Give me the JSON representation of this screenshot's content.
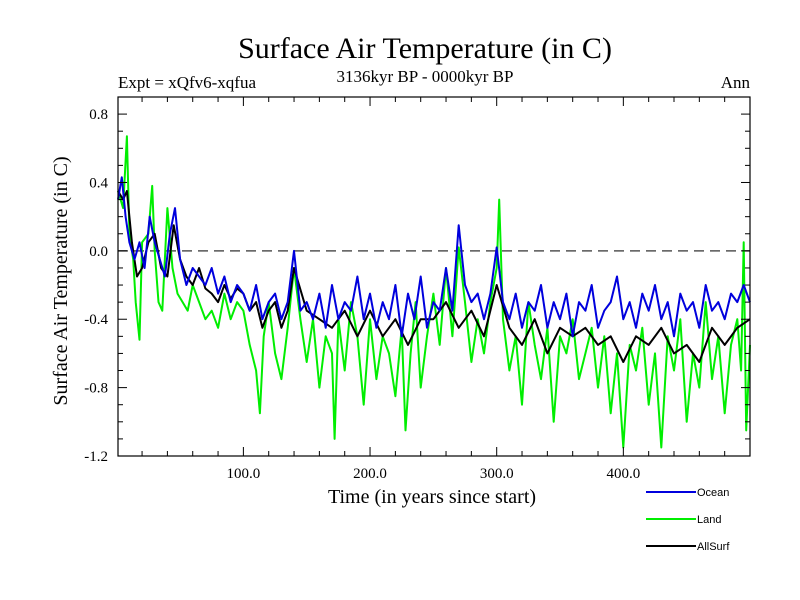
{
  "chart_data": {
    "type": "line",
    "title": "Surface Air Temperature (in C)",
    "subtitle": "3136kyr BP - 0000kyr BP",
    "experiment_label": "Expt = xQfv6-xqfua",
    "season_label": "Ann",
    "xlabel": "Time (in years since start)",
    "ylabel": "Surface Air Temperature (in C)",
    "xlim": [
      1,
      500
    ],
    "ylim": [
      -1.2,
      0.9
    ],
    "x_ticks": [
      100,
      200,
      300,
      400
    ],
    "x_tick_labels": [
      "100.0",
      "200.0",
      "300.0",
      "400.0"
    ],
    "y_ticks": [
      -1.2,
      -0.8,
      -0.4,
      0.0,
      0.4,
      0.8
    ],
    "y_tick_labels": [
      "-1.2",
      "-0.8",
      "-0.4",
      "0.0",
      "0.4",
      "0.8"
    ],
    "reference_line": 0.0,
    "legend_position": "bottom-right",
    "series": [
      {
        "name": "Land",
        "color": "#00ee00",
        "x": [
          1,
          5,
          8,
          10,
          13,
          15,
          18,
          20,
          25,
          28,
          30,
          33,
          36,
          40,
          44,
          48,
          52,
          56,
          60,
          65,
          70,
          75,
          80,
          85,
          90,
          95,
          100,
          105,
          110,
          113,
          116,
          120,
          125,
          130,
          135,
          140,
          145,
          150,
          155,
          160,
          165,
          170,
          172,
          175,
          180,
          185,
          190,
          195,
          200,
          205,
          210,
          215,
          220,
          225,
          228,
          232,
          236,
          240,
          245,
          250,
          255,
          260,
          265,
          270,
          275,
          280,
          285,
          290,
          295,
          300,
          302,
          305,
          310,
          315,
          320,
          325,
          330,
          335,
          340,
          345,
          350,
          355,
          360,
          365,
          370,
          375,
          380,
          385,
          390,
          395,
          400,
          405,
          410,
          415,
          420,
          425,
          430,
          435,
          440,
          445,
          450,
          455,
          460,
          465,
          470,
          475,
          480,
          485,
          490,
          493,
          495,
          497,
          500
        ],
        "values": [
          0.35,
          0.25,
          0.67,
          0.1,
          -0.05,
          -0.3,
          -0.52,
          0.05,
          0.1,
          0.38,
          0.0,
          -0.3,
          -0.35,
          0.25,
          -0.1,
          -0.25,
          -0.3,
          -0.35,
          -0.2,
          -0.3,
          -0.4,
          -0.35,
          -0.45,
          -0.25,
          -0.4,
          -0.3,
          -0.35,
          -0.55,
          -0.7,
          -0.95,
          -0.5,
          -0.3,
          -0.6,
          -0.75,
          -0.45,
          -0.1,
          -0.4,
          -0.65,
          -0.4,
          -0.8,
          -0.5,
          -0.6,
          -1.1,
          -0.4,
          -0.7,
          -0.3,
          -0.5,
          -0.9,
          -0.4,
          -0.75,
          -0.5,
          -0.6,
          -0.85,
          -0.45,
          -1.05,
          -0.6,
          -0.3,
          -0.8,
          -0.5,
          -0.25,
          -0.55,
          -0.1,
          -0.5,
          0.02,
          -0.3,
          -0.65,
          -0.4,
          -0.6,
          -0.3,
          -0.1,
          0.3,
          -0.4,
          -0.7,
          -0.5,
          -0.9,
          -0.3,
          -0.55,
          -0.75,
          -0.45,
          -1.0,
          -0.5,
          -0.6,
          -0.4,
          -0.75,
          -0.6,
          -0.45,
          -0.8,
          -0.5,
          -0.95,
          -0.6,
          -1.15,
          -0.55,
          -0.7,
          -0.45,
          -0.9,
          -0.6,
          -1.15,
          -0.5,
          -0.7,
          -0.4,
          -1.0,
          -0.6,
          -0.8,
          -0.3,
          -0.75,
          -0.5,
          -0.95,
          -0.55,
          -0.4,
          -0.7,
          0.05,
          -1.05,
          -0.55
        ]
      },
      {
        "name": "AllSurf",
        "color": "#000000",
        "x": [
          1,
          5,
          8,
          12,
          16,
          20,
          25,
          30,
          35,
          40,
          45,
          50,
          55,
          60,
          65,
          70,
          75,
          80,
          85,
          90,
          95,
          100,
          105,
          110,
          115,
          120,
          125,
          130,
          135,
          140,
          150,
          160,
          170,
          180,
          190,
          200,
          210,
          220,
          230,
          240,
          250,
          260,
          270,
          280,
          290,
          300,
          310,
          320,
          330,
          340,
          350,
          360,
          370,
          380,
          390,
          400,
          410,
          420,
          430,
          440,
          450,
          460,
          470,
          480,
          490,
          500
        ],
        "values": [
          0.35,
          0.3,
          0.35,
          0.05,
          -0.15,
          -0.1,
          0.05,
          0.1,
          -0.1,
          -0.15,
          0.15,
          -0.05,
          -0.15,
          -0.2,
          -0.1,
          -0.22,
          -0.25,
          -0.3,
          -0.2,
          -0.28,
          -0.22,
          -0.25,
          -0.35,
          -0.3,
          -0.45,
          -0.35,
          -0.3,
          -0.45,
          -0.35,
          -0.1,
          -0.35,
          -0.4,
          -0.45,
          -0.35,
          -0.5,
          -0.35,
          -0.5,
          -0.4,
          -0.55,
          -0.4,
          -0.4,
          -0.3,
          -0.45,
          -0.35,
          -0.5,
          -0.2,
          -0.45,
          -0.55,
          -0.4,
          -0.6,
          -0.45,
          -0.5,
          -0.45,
          -0.55,
          -0.5,
          -0.65,
          -0.5,
          -0.55,
          -0.45,
          -0.6,
          -0.55,
          -0.65,
          -0.45,
          -0.55,
          -0.45,
          -0.4
        ]
      },
      {
        "name": "Ocean",
        "color": "#0000dd",
        "x": [
          1,
          4,
          7,
          10,
          14,
          18,
          22,
          26,
          30,
          34,
          38,
          42,
          46,
          50,
          55,
          60,
          65,
          70,
          75,
          80,
          85,
          90,
          95,
          100,
          105,
          110,
          115,
          120,
          125,
          130,
          135,
          140,
          145,
          150,
          155,
          160,
          165,
          170,
          175,
          180,
          185,
          190,
          195,
          200,
          205,
          210,
          215,
          220,
          225,
          230,
          235,
          240,
          245,
          250,
          255,
          260,
          265,
          270,
          275,
          280,
          285,
          290,
          295,
          300,
          305,
          310,
          315,
          320,
          325,
          330,
          335,
          340,
          345,
          350,
          355,
          360,
          365,
          370,
          375,
          380,
          385,
          390,
          395,
          400,
          405,
          410,
          415,
          420,
          425,
          430,
          435,
          440,
          445,
          450,
          455,
          460,
          465,
          470,
          475,
          480,
          485,
          490,
          495,
          500
        ],
        "values": [
          0.3,
          0.43,
          0.2,
          0.05,
          -0.05,
          0.05,
          -0.1,
          0.2,
          0.05,
          -0.05,
          -0.15,
          0.1,
          0.25,
          -0.05,
          -0.2,
          -0.1,
          -0.15,
          -0.2,
          -0.1,
          -0.25,
          -0.15,
          -0.3,
          -0.2,
          -0.25,
          -0.35,
          -0.2,
          -0.4,
          -0.3,
          -0.25,
          -0.4,
          -0.3,
          0.0,
          -0.35,
          -0.3,
          -0.4,
          -0.25,
          -0.45,
          -0.2,
          -0.4,
          -0.3,
          -0.35,
          -0.15,
          -0.4,
          -0.25,
          -0.45,
          -0.3,
          -0.4,
          -0.2,
          -0.5,
          -0.25,
          -0.4,
          -0.15,
          -0.45,
          -0.3,
          -0.35,
          -0.1,
          -0.35,
          0.15,
          -0.2,
          -0.3,
          -0.25,
          -0.4,
          -0.25,
          0.02,
          -0.3,
          -0.4,
          -0.25,
          -0.45,
          -0.3,
          -0.35,
          -0.2,
          -0.45,
          -0.3,
          -0.4,
          -0.25,
          -0.5,
          -0.3,
          -0.35,
          -0.2,
          -0.45,
          -0.35,
          -0.3,
          -0.15,
          -0.4,
          -0.3,
          -0.45,
          -0.25,
          -0.35,
          -0.2,
          -0.4,
          -0.3,
          -0.5,
          -0.25,
          -0.35,
          -0.3,
          -0.45,
          -0.2,
          -0.35,
          -0.3,
          -0.4,
          -0.25,
          -0.3,
          -0.2,
          -0.3
        ]
      }
    ],
    "legend_order": [
      "Ocean",
      "Land",
      "AllSurf"
    ]
  }
}
